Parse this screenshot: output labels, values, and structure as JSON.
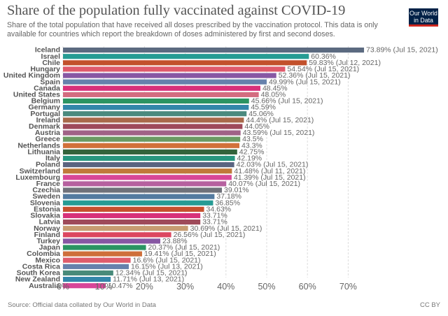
{
  "header": {
    "title": "Share of the population fully vaccinated against COVID-19",
    "subtitle": "Share of the total population that have received all doses prescribed by the vaccination protocol. This data is only available for countries which report the breakdown of doses administered by first and second doses.",
    "logo_line1": "Our World",
    "logo_line2": "in Data"
  },
  "footer": {
    "source": "Source: Official data collated by Our World in Data",
    "license": "CC BY"
  },
  "chart_data": {
    "type": "bar",
    "orientation": "horizontal",
    "title": "Share of the population fully vaccinated against COVID-19",
    "xlabel": "",
    "ylabel": "",
    "xlim": [
      0,
      75
    ],
    "x_ticks": [
      0,
      10,
      20,
      30,
      40,
      50,
      60,
      70
    ],
    "x_tick_labels": [
      "0%",
      "10%",
      "20%",
      "30%",
      "40%",
      "50%",
      "60%",
      "70%"
    ],
    "grid": "vertical dashed",
    "categories": [
      "Iceland",
      "Israel",
      "Chile",
      "Hungary",
      "United Kingdom",
      "Spain",
      "Canada",
      "United States",
      "Belgium",
      "Germany",
      "Portugal",
      "Ireland",
      "Denmark",
      "Austria",
      "Greece",
      "Netherlands",
      "Lithuania",
      "Italy",
      "Poland",
      "Switzerland",
      "Luxembourg",
      "France",
      "Czechia",
      "Sweden",
      "Slovenia",
      "Estonia",
      "Slovakia",
      "Latvia",
      "Norway",
      "Finland",
      "Turkey",
      "Japan",
      "Colombia",
      "Mexico",
      "Costa Rica",
      "South Korea",
      "New Zealand",
      "Australia"
    ],
    "values": [
      73.89,
      60.36,
      59.83,
      54.54,
      52.36,
      49.99,
      48.45,
      48.05,
      45.66,
      45.59,
      45.06,
      44.4,
      44.05,
      43.59,
      43.5,
      43.3,
      42.75,
      42.19,
      42.03,
      41.48,
      41.39,
      40.07,
      39.01,
      37.18,
      36.85,
      34.63,
      33.71,
      33.71,
      30.69,
      26.56,
      23.88,
      20.37,
      19.41,
      16.6,
      16.15,
      12.34,
      11.71,
      10.47
    ],
    "labels": [
      "73.89% (Jul 15, 2021)",
      "60.36%",
      "59.83% (Jul 12, 2021)",
      "54.54% (Jul 15, 2021)",
      "52.36% (Jul 15, 2021)",
      "49.99% (Jul 15, 2021)",
      "48.45%",
      "48.05%",
      "45.66% (Jul 15, 2021)",
      "45.59%",
      "45.06%",
      "44.4% (Jul 15, 2021)",
      "44.05%",
      "43.59% (Jul 15, 2021)",
      "43.5%",
      "43.3%",
      "42.75%",
      "42.19%",
      "42.03% (Jul 15, 2021)",
      "41.48% (Jul 11, 2021)",
      "41.39% (Jul 15, 2021)",
      "40.07% (Jul 15, 2021)",
      "39.01%",
      "37.18%",
      "36.85%",
      "34.63%",
      "33.71%",
      "33.71%",
      "30.69% (Jul 15, 2021)",
      "26.56% (Jul 15, 2021)",
      "23.88%",
      "20.37% (Jul 15, 2021)",
      "19.41% (Jul 15, 2021)",
      "16.6% (Jul 15, 2021)",
      "16.15% (Jul 13, 2021)",
      "12.34% (Jul 15, 2021)",
      "11.71% (Jul 13, 2021)",
      "10.47%"
    ],
    "colors": [
      "#5b6a80",
      "#269c94",
      "#c2512c",
      "#df5a6c",
      "#8758a4",
      "#6681ac",
      "#d9307a",
      "#d36d80",
      "#2b9462",
      "#3387aa",
      "#4b8a7e",
      "#a9694a",
      "#9e4a5a",
      "#a06287",
      "#6b9a63",
      "#d2713a",
      "#33633b",
      "#28977f",
      "#5a6480",
      "#c0793a",
      "#d84798",
      "#b6609f",
      "#6f717a",
      "#547ba0",
      "#269b94",
      "#c6502e",
      "#d7327a",
      "#9e4a5a",
      "#c79c72",
      "#dc4760",
      "#8757a3",
      "#2a9462",
      "#ce6f3b",
      "#df5c6c",
      "#6681ac",
      "#488a7a",
      "#3387aa",
      "#d84698"
    ]
  }
}
